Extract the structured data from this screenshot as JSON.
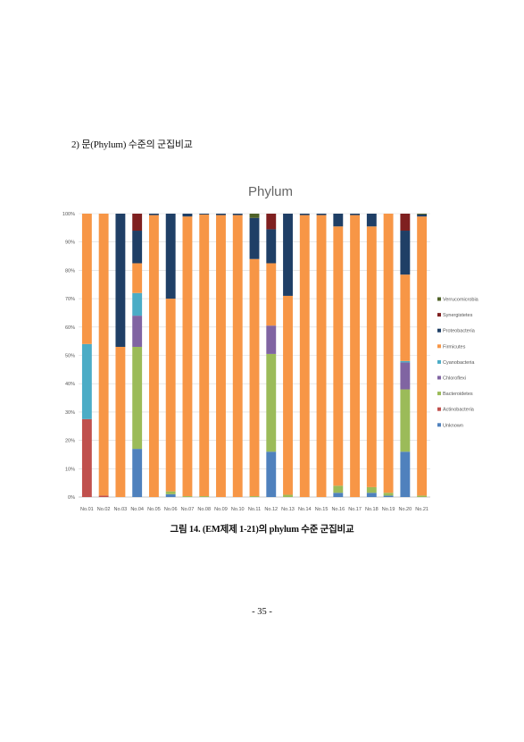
{
  "section_heading": "2) 문(Phylum) 수준의 군집비교",
  "figure_caption": "그림 14. (EM제제 1-21)의 phylum 수준 군집비교",
  "page_number": "- 35 -",
  "colors": {
    "Verrucomicrobia": "#4f6228",
    "Synergistetes": "#7f2020",
    "Proteobacteria": "#1f3f66",
    "Firmicutes": "#f79646",
    "Cyanobacteria": "#4bacc6",
    "Chloroflexi": "#8064a2",
    "Bacteroidetes": "#9bbb59",
    "Actinobacteria": "#c0504d",
    "Unknown": "#4f81bd"
  },
  "chart_data": {
    "type": "bar",
    "stacked": true,
    "percent": true,
    "title": "Phylum",
    "xlabel": "",
    "ylabel": "",
    "ylim": [
      0,
      100
    ],
    "yticks": [
      "0%",
      "10%",
      "20%",
      "30%",
      "40%",
      "50%",
      "60%",
      "70%",
      "80%",
      "90%",
      "100%"
    ],
    "grid": true,
    "legend_position": "right",
    "categories": [
      "No.01",
      "No.02",
      "No.03",
      "No.04",
      "No.05",
      "No.06",
      "No.07",
      "No.08",
      "No.09",
      "No.10",
      "No.11",
      "No.12",
      "No.13",
      "No.14",
      "No.15",
      "No.16",
      "No.17",
      "No.18",
      "No.19",
      "No.20",
      "No.21"
    ],
    "series": [
      {
        "name": "Unknown",
        "values": [
          0,
          0,
          0,
          17,
          0,
          1,
          0,
          0,
          0,
          0,
          0,
          16,
          0,
          0,
          0,
          1.5,
          0,
          1.5,
          0.5,
          16,
          0
        ]
      },
      {
        "name": "Actinobacteria",
        "values": [
          27.5,
          0.5,
          0,
          0,
          0,
          0,
          0,
          0,
          0,
          0,
          0,
          0,
          0,
          0,
          0,
          0,
          0,
          0,
          0,
          0,
          0
        ]
      },
      {
        "name": "Bacteroidetes",
        "values": [
          0,
          0,
          0,
          36,
          0,
          1,
          0.3,
          0.3,
          0,
          0,
          0.3,
          34.5,
          0.8,
          0,
          0,
          2.5,
          0,
          2,
          1,
          22,
          0.5
        ]
      },
      {
        "name": "Chloroflexi",
        "values": [
          0,
          0,
          0,
          11,
          0,
          0,
          0,
          0,
          0,
          0,
          0,
          10,
          0,
          0,
          0,
          0,
          0,
          0,
          0,
          9.5,
          0
        ]
      },
      {
        "name": "Cyanobacteria",
        "values": [
          26.5,
          0,
          0,
          8,
          0,
          0,
          0,
          0,
          0,
          0,
          0,
          0,
          0,
          0,
          0,
          0,
          0,
          0,
          0,
          0.5,
          0
        ]
      },
      {
        "name": "Firmicutes",
        "values": [
          46,
          99.5,
          53,
          10.5,
          99.5,
          68,
          98.7,
          99.4,
          99.5,
          99.5,
          83.7,
          22,
          70.2,
          99.5,
          99.5,
          91.5,
          99.5,
          92,
          98.5,
          30.5,
          98.5
        ]
      },
      {
        "name": "Proteobacteria",
        "values": [
          0,
          0,
          47,
          11.5,
          0.5,
          30,
          1,
          0.3,
          0.5,
          0.5,
          14.5,
          12,
          29,
          0.5,
          0.5,
          4.5,
          0.5,
          4.5,
          0,
          15.5,
          0.7
        ]
      },
      {
        "name": "Synergistetes",
        "values": [
          0,
          0,
          0,
          6,
          0,
          0,
          0,
          0,
          0,
          0,
          0,
          5.5,
          0,
          0,
          0,
          0,
          0,
          0,
          0,
          6,
          0
        ]
      },
      {
        "name": "Verrucomicrobia",
        "values": [
          0,
          0,
          0,
          0,
          0,
          0,
          0,
          0,
          0,
          0,
          1.5,
          0,
          0,
          0,
          0,
          0,
          0,
          0,
          0,
          0,
          0.3
        ]
      }
    ],
    "legend_order": [
      "Verrucomicrobia",
      "Synergistetes",
      "Proteobacteria",
      "Firmicutes",
      "Cyanobacteria",
      "Chloroflexi",
      "Bacteroidetes",
      "Actinobacteria",
      "Unknown"
    ]
  }
}
